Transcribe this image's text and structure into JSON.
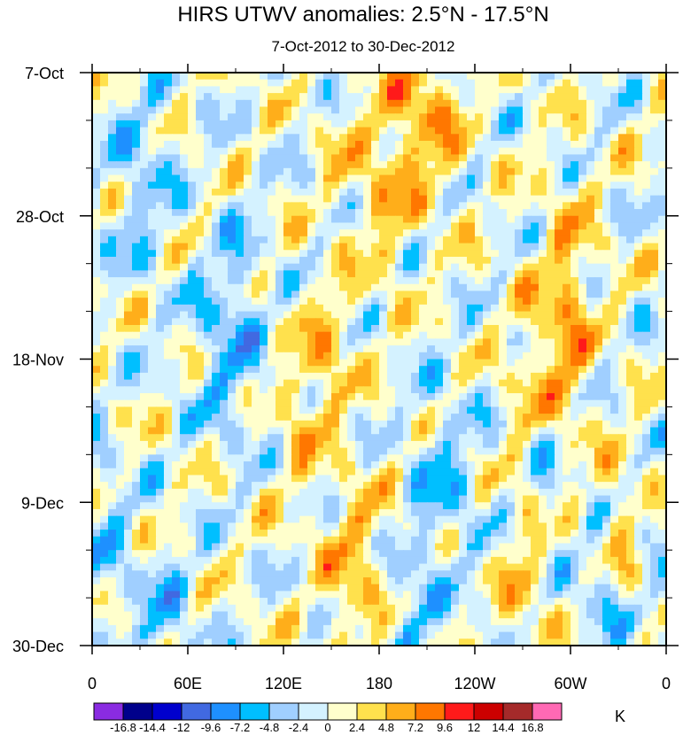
{
  "chart_data": {
    "type": "heatmap",
    "title": "HIRS UTWV anomalies: 2.5°N - 17.5°N",
    "subtitle": "7-Oct-2012 to 30-Dec-2012",
    "x_ticks": [
      "0",
      "60E",
      "120E",
      "180",
      "120W",
      "60W",
      "0"
    ],
    "x_tick_values": [
      0,
      60,
      120,
      180,
      240,
      300,
      360
    ],
    "x_range": [
      0,
      360
    ],
    "y_ticks": [
      "7-Oct",
      "28-Oct",
      "18-Nov",
      "9-Dec",
      "30-Dec"
    ],
    "y_tick_days": [
      0,
      21,
      42,
      63,
      84
    ],
    "y_range_days": [
      0,
      84
    ],
    "colorbar_labels": [
      "-16.8",
      "-14.4",
      "-12",
      "-9.6",
      "-7.2",
      "-4.8",
      "-2.4",
      "0",
      "2.4",
      "4.8",
      "7.2",
      "9.6",
      "12",
      "14.4",
      "16.8"
    ],
    "colorbar_levels": [
      -16.8,
      -14.4,
      -12,
      -9.6,
      -7.2,
      -4.8,
      -2.4,
      0,
      2.4,
      4.8,
      7.2,
      9.6,
      12,
      14.4,
      16.8
    ],
    "colorbar_colors": [
      "#8a2be2",
      "#00008b",
      "#0000cd",
      "#4169e1",
      "#1e90ff",
      "#00bfff",
      "#a0cfff",
      "#d4f2ff",
      "#ffffcc",
      "#ffe14d",
      "#ffae1a",
      "#ff7700",
      "#ff1a1a",
      "#cc0000",
      "#a52a2a",
      "#ff69b4"
    ],
    "units": "K"
  }
}
